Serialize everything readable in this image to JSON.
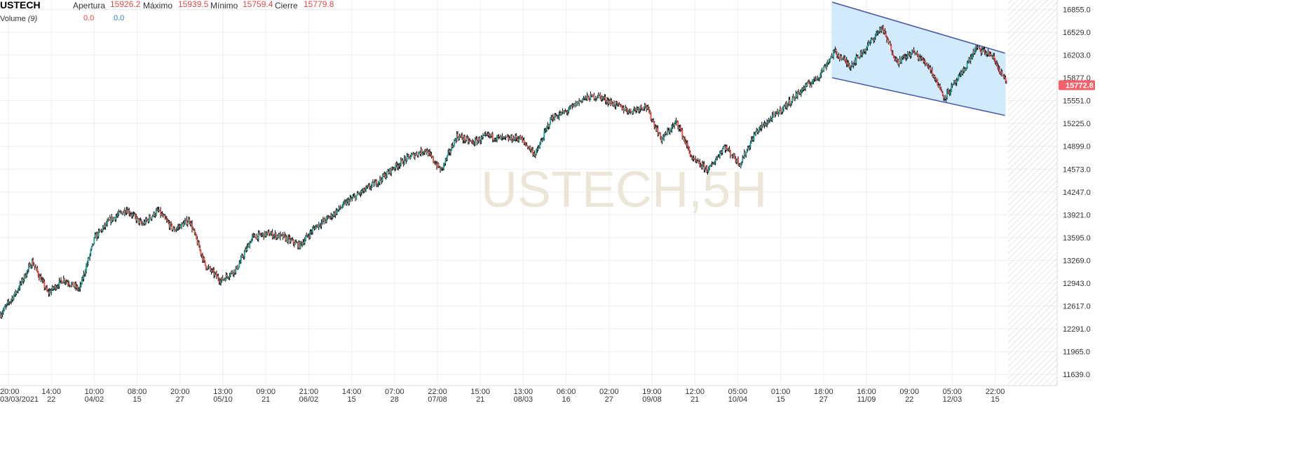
{
  "legend": {
    "symbol": "USTECH",
    "open_label": "Apertura",
    "open_value": "15926.2",
    "high_label": "Máximo",
    "high_value": "15939.5",
    "low_label": "Mínimo",
    "low_value": "15759.4",
    "close_label": "Cierre",
    "close_value": "15779.8",
    "volume_label": "Volume",
    "volume_period": "(9)",
    "volume_value_a": "0.0",
    "volume_value_b": "0.0"
  },
  "watermark": "USTECH,5H",
  "colors": {
    "bull": "#26a69a",
    "bear": "#ef5350",
    "wick": "#000000",
    "channel_line": "#4654a6",
    "channel_fill": "#c9e7fb",
    "price_badge": "#f5616b",
    "grid": "#eeeeee",
    "watermark": "#ece6d8"
  },
  "chart_data": {
    "type": "line",
    "subtype": "candlestick",
    "title": "USTECH,5H",
    "y_axis": {
      "position": "right",
      "ylim": [
        11480,
        16990
      ],
      "ticks": [
        "16855.0",
        "16529.0",
        "16203.0",
        "15877.0",
        "15551.0",
        "15225.0",
        "14899.0",
        "14573.0",
        "14247.0",
        "13921.0",
        "13595.0",
        "13269.0",
        "12943.0",
        "12617.0",
        "12291.0",
        "11965.0",
        "11639.0"
      ]
    },
    "x_axis": {
      "ticks": [
        {
          "time": "20:00",
          "date": "03/03/2021"
        },
        {
          "time": "14:00",
          "date": "22"
        },
        {
          "time": "10:00",
          "date": "04/02"
        },
        {
          "time": "08:00",
          "date": "15"
        },
        {
          "time": "20:00",
          "date": "27"
        },
        {
          "time": "13:00",
          "date": "05/10"
        },
        {
          "time": "09:00",
          "date": "21"
        },
        {
          "time": "21:00",
          "date": "06/02"
        },
        {
          "time": "14:00",
          "date": "15"
        },
        {
          "time": "07:00",
          "date": "28"
        },
        {
          "time": "22:00",
          "date": "07/08"
        },
        {
          "time": "15:00",
          "date": "21"
        },
        {
          "time": "13:00",
          "date": "08/03"
        },
        {
          "time": "06:00",
          "date": "16"
        },
        {
          "time": "02:00",
          "date": "27"
        },
        {
          "time": "19:00",
          "date": "09/08"
        },
        {
          "time": "12:00",
          "date": "21"
        },
        {
          "time": "05:00",
          "date": "10/04"
        },
        {
          "time": "01:00",
          "date": "15"
        },
        {
          "time": "18:00",
          "date": "27"
        },
        {
          "time": "16:00",
          "date": "11/09"
        },
        {
          "time": "09:00",
          "date": "22"
        },
        {
          "time": "05:00",
          "date": "12/03"
        },
        {
          "time": "22:00",
          "date": "15"
        }
      ]
    },
    "grid": true,
    "current_price": "15772.8",
    "close_path": [
      {
        "x": 0,
        "y": 12500
      },
      {
        "x": 1,
        "y": 12820
      },
      {
        "x": 2,
        "y": 13250
      },
      {
        "x": 3,
        "y": 12800
      },
      {
        "x": 4,
        "y": 13000
      },
      {
        "x": 5,
        "y": 12850
      },
      {
        "x": 6,
        "y": 13600
      },
      {
        "x": 7,
        "y": 13850
      },
      {
        "x": 8,
        "y": 14000
      },
      {
        "x": 9,
        "y": 13780
      },
      {
        "x": 10,
        "y": 13980
      },
      {
        "x": 11,
        "y": 13700
      },
      {
        "x": 12,
        "y": 13850
      },
      {
        "x": 13,
        "y": 13200
      },
      {
        "x": 14,
        "y": 12980
      },
      {
        "x": 15,
        "y": 13150
      },
      {
        "x": 16,
        "y": 13600
      },
      {
        "x": 17,
        "y": 13650
      },
      {
        "x": 18,
        "y": 13600
      },
      {
        "x": 19,
        "y": 13480
      },
      {
        "x": 20,
        "y": 13750
      },
      {
        "x": 21,
        "y": 13900
      },
      {
        "x": 22,
        "y": 14100
      },
      {
        "x": 23,
        "y": 14250
      },
      {
        "x": 24,
        "y": 14400
      },
      {
        "x": 25,
        "y": 14600
      },
      {
        "x": 26,
        "y": 14750
      },
      {
        "x": 27,
        "y": 14850
      },
      {
        "x": 28,
        "y": 14550
      },
      {
        "x": 29,
        "y": 15050
      },
      {
        "x": 30,
        "y": 14950
      },
      {
        "x": 31,
        "y": 15050
      },
      {
        "x": 32,
        "y": 15000
      },
      {
        "x": 33,
        "y": 15020
      },
      {
        "x": 34,
        "y": 14780
      },
      {
        "x": 35,
        "y": 15300
      },
      {
        "x": 36,
        "y": 15400
      },
      {
        "x": 37,
        "y": 15580
      },
      {
        "x": 38,
        "y": 15620
      },
      {
        "x": 39,
        "y": 15500
      },
      {
        "x": 40,
        "y": 15400
      },
      {
        "x": 41,
        "y": 15480
      },
      {
        "x": 42,
        "y": 15000
      },
      {
        "x": 43,
        "y": 15250
      },
      {
        "x": 44,
        "y": 14700
      },
      {
        "x": 45,
        "y": 14560
      },
      {
        "x": 46,
        "y": 14900
      },
      {
        "x": 47,
        "y": 14650
      },
      {
        "x": 48,
        "y": 15100
      },
      {
        "x": 49,
        "y": 15300
      },
      {
        "x": 50,
        "y": 15500
      },
      {
        "x": 51,
        "y": 15720
      },
      {
        "x": 52,
        "y": 15900
      },
      {
        "x": 53,
        "y": 16250
      },
      {
        "x": 54,
        "y": 16050
      },
      {
        "x": 55,
        "y": 16300
      },
      {
        "x": 56,
        "y": 16600
      },
      {
        "x": 57,
        "y": 16100
      },
      {
        "x": 58,
        "y": 16250
      },
      {
        "x": 59,
        "y": 16050
      },
      {
        "x": 60,
        "y": 15600
      },
      {
        "x": 61,
        "y": 15900
      },
      {
        "x": 62,
        "y": 16300
      },
      {
        "x": 63,
        "y": 16200
      },
      {
        "x": 64,
        "y": 15779.8
      }
    ],
    "annotations": [
      {
        "type": "parallel_channel",
        "upper": [
          {
            "x": 53.3,
            "y": 16960
          },
          {
            "x": 64.4,
            "y": 16230
          }
        ],
        "lower": [
          {
            "x": 53.3,
            "y": 15880
          },
          {
            "x": 64.4,
            "y": 15340
          }
        ]
      }
    ]
  }
}
